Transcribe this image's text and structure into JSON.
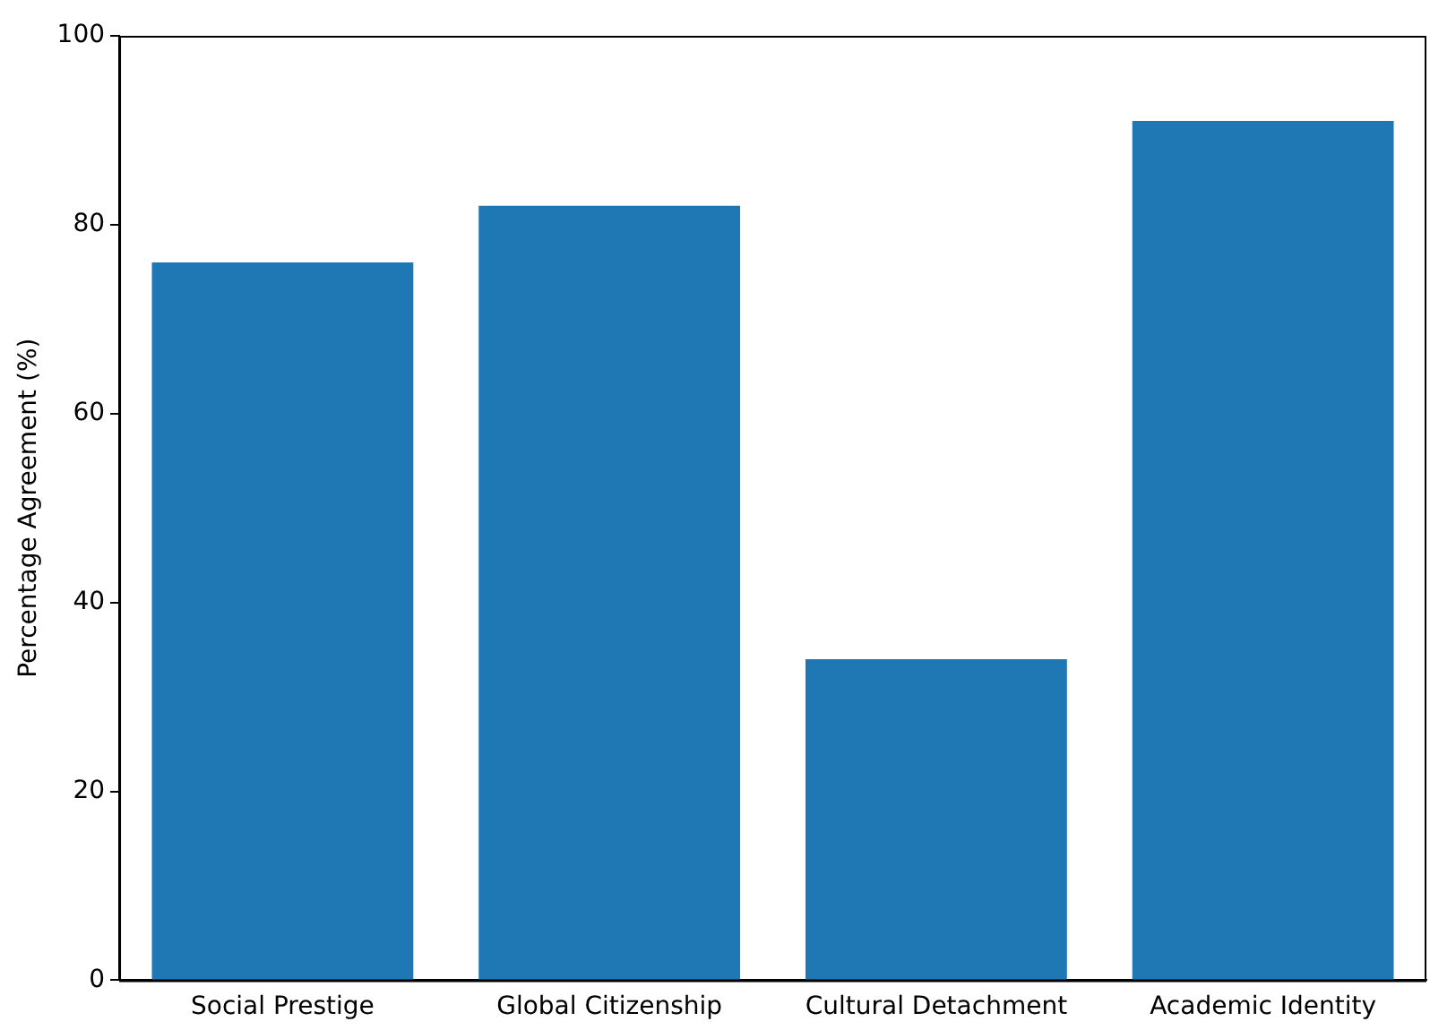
{
  "chart_data": {
    "type": "bar",
    "ylabel": "Percentage Agreement (%)",
    "categories": [
      "Social Prestige",
      "Global Citizenship",
      "Cultural Detachment",
      "Academic Identity"
    ],
    "values": [
      76,
      82,
      34,
      91
    ],
    "color": "#1f77b4",
    "ylim": [
      0,
      100
    ],
    "yticks": [
      0,
      20,
      40,
      60,
      80,
      100
    ],
    "grid": false,
    "legend": false
  }
}
